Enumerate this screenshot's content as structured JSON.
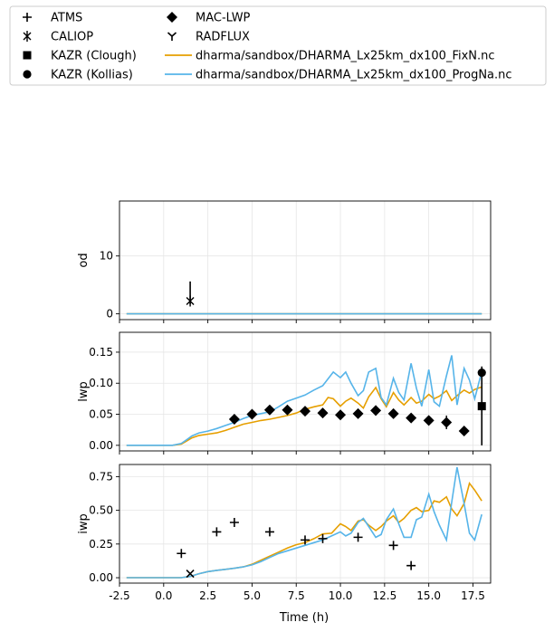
{
  "chart_data": {
    "type": "line",
    "xlabel": "Time (h)",
    "xlim": [
      -2.5,
      18.5
    ],
    "x_ticks": [
      "-2.5",
      "0.0",
      "2.5",
      "5.0",
      "7.5",
      "10.0",
      "12.5",
      "15.0",
      "17.5"
    ],
    "x_tick_values": [
      -2.5,
      0,
      2.5,
      5,
      7.5,
      10,
      12.5,
      15,
      17.5
    ],
    "grid": true,
    "legend": {
      "placement": "top, outside plot area",
      "entries": [
        {
          "label": "ATMS",
          "marker": "plus"
        },
        {
          "label": "CALIOP",
          "marker": "x-bar"
        },
        {
          "label": "KAZR (Clough)",
          "marker": "square"
        },
        {
          "label": "KAZR (Kollias)",
          "marker": "circle"
        },
        {
          "label": "MAC-LWP",
          "marker": "diamond"
        },
        {
          "label": "RADFLUX",
          "marker": "tri-down"
        },
        {
          "label": "dharma/sandbox/DHARMA_Lx25km_dx100_FixN.nc",
          "line": "#E69F00"
        },
        {
          "label": "dharma/sandbox/DHARMA_Lx25km_dx100_ProgNa.nc",
          "line": "#56B4E9"
        }
      ]
    },
    "series_colors": {
      "FixN": "#E69F00",
      "ProgNa": "#56B4E9"
    },
    "panels": [
      {
        "ylabel": "od",
        "ylim": [
          -1,
          19.5
        ],
        "y_ticks": [
          "0",
          "10"
        ],
        "y_tick_values": [
          0,
          10
        ],
        "series": [
          {
            "name": "dharma/sandbox/DHARMA_Lx25km_dx100_FixN.nc",
            "color": "#E69F00",
            "x": [
              -2.1,
              1.9,
              2.2,
              2.3,
              2.8,
              3.5,
              4.0,
              4.5,
              5.0,
              5.5,
              6.0,
              6.5,
              7.0,
              7.3,
              7.6,
              8.0,
              8.3,
              8.6,
              9.0,
              9.3,
              9.6,
              10.0,
              10.3,
              10.6,
              11.0,
              11.3,
              11.6,
              12.0,
              12.3,
              12.6,
              13.0,
              13.3,
              13.6,
              14.0,
              14.3,
              14.6,
              15.0,
              15.3,
              15.5,
              15.6,
              18.0
            ],
            "y": [
              0,
              0,
              0,
              0,
              0,
              0,
              0,
              0,
              0,
              0,
              0,
              0,
              0,
              0,
              0,
              0,
              0,
              0,
              0,
              0,
              0,
              0,
              0,
              0,
              0,
              0,
              0,
              0,
              0,
              0,
              0,
              0,
              0,
              0,
              0,
              0,
              0,
              0,
              0,
              0,
              0
            ]
          },
          {
            "name": "dharma/sandbox/DHARMA_Lx25km_dx100_ProgNa.nc",
            "color": "#56B4E9",
            "x": [
              -2.1,
              1.9,
              2.2,
              2.3,
              2.8,
              3.5,
              4.0,
              4.5,
              5.0,
              5.5,
              6.0,
              6.5,
              7.0,
              7.3,
              7.6,
              8.0,
              8.3,
              8.6,
              9.0,
              9.3,
              9.6,
              10.0,
              10.3,
              10.6,
              11.0,
              11.3,
              11.6,
              12.0,
              12.3,
              12.6,
              13.0,
              13.3,
              13.6,
              14.0,
              14.3,
              14.6,
              15.0,
              15.3,
              15.5,
              15.6,
              18.0
            ],
            "y": [
              0,
              0,
              0,
              0,
              0,
              0,
              0,
              0,
              0,
              0,
              0,
              0,
              0,
              0,
              0,
              0,
              0,
              0,
              0,
              0,
              0,
              0,
              0,
              0,
              0,
              0,
              0,
              0,
              0,
              0,
              0,
              0,
              0,
              0,
              0,
              0,
              0,
              0,
              0,
              0,
              0
            ]
          }
        ],
        "observations": [
          {
            "name": "CALIOP",
            "marker": "x-bar",
            "x": 1.5,
            "y": 2.2,
            "err_low": 0.5,
            "err_high": 3.4
          }
        ]
      },
      {
        "ylabel": "lwp",
        "ylim": [
          -0.009,
          0.182
        ],
        "y_ticks": [
          "0.00",
          "0.05",
          "0.10",
          "0.15"
        ],
        "y_tick_values": [
          0,
          0.05,
          0.1,
          0.15
        ],
        "series": [
          {
            "name": "dharma/sandbox/DHARMA_Lx25km_dx100_FixN.nc",
            "color": "#E69F00",
            "x": [
              -2.1,
              0.5,
              1.0,
              1.3,
              1.6,
              2.0,
              2.5,
              3.0,
              3.5,
              4.0,
              4.5,
              5.0,
              5.5,
              6.0,
              6.5,
              7.0,
              7.5,
              8.0,
              8.5,
              9.0,
              9.3,
              9.6,
              10.0,
              10.3,
              10.6,
              11.0,
              11.3,
              11.6,
              12.0,
              12.3,
              12.6,
              13.0,
              13.3,
              13.6,
              14.0,
              14.3,
              14.6,
              15.0,
              15.3,
              15.6,
              16.0,
              16.3,
              16.6,
              17.0,
              17.3,
              17.6,
              18.0
            ],
            "y": [
              0,
              0,
              0.002,
              0.007,
              0.012,
              0.016,
              0.018,
              0.02,
              0.024,
              0.029,
              0.034,
              0.037,
              0.04,
              0.042,
              0.045,
              0.048,
              0.052,
              0.058,
              0.062,
              0.065,
              0.077,
              0.075,
              0.063,
              0.071,
              0.076,
              0.068,
              0.06,
              0.078,
              0.093,
              0.075,
              0.062,
              0.085,
              0.073,
              0.065,
              0.077,
              0.068,
              0.071,
              0.082,
              0.075,
              0.079,
              0.088,
              0.072,
              0.08,
              0.089,
              0.084,
              0.09,
              0.094
            ]
          },
          {
            "name": "dharma/sandbox/DHARMA_Lx25km_dx100_ProgNa.nc",
            "color": "#56B4E9",
            "x": [
              -2.1,
              0.5,
              1.0,
              1.3,
              1.6,
              2.0,
              2.5,
              3.0,
              3.5,
              4.0,
              4.5,
              5.0,
              5.5,
              6.0,
              6.5,
              7.0,
              7.5,
              8.0,
              8.5,
              9.0,
              9.3,
              9.6,
              10.0,
              10.3,
              10.6,
              11.0,
              11.3,
              11.6,
              12.0,
              12.3,
              12.6,
              13.0,
              13.3,
              13.6,
              14.0,
              14.3,
              14.6,
              15.0,
              15.3,
              15.6,
              16.0,
              16.3,
              16.6,
              17.0,
              17.3,
              17.6,
              18.0
            ],
            "y": [
              0,
              0,
              0.003,
              0.009,
              0.015,
              0.02,
              0.023,
              0.027,
              0.032,
              0.037,
              0.043,
              0.048,
              0.051,
              0.054,
              0.062,
              0.071,
              0.076,
              0.081,
              0.089,
              0.096,
              0.107,
              0.118,
              0.109,
              0.118,
              0.1,
              0.08,
              0.088,
              0.118,
              0.124,
              0.077,
              0.065,
              0.108,
              0.085,
              0.073,
              0.132,
              0.092,
              0.063,
              0.122,
              0.07,
              0.063,
              0.112,
              0.145,
              0.065,
              0.124,
              0.105,
              0.075,
              0.119
            ]
          }
        ],
        "observations": [
          {
            "name": "MAC-LWP",
            "marker": "diamond",
            "x": [
              4,
              5,
              6,
              7,
              8,
              9,
              10,
              11,
              12,
              13,
              14,
              15,
              16,
              17
            ],
            "y": [
              0.042,
              0.05,
              0.057,
              0.057,
              0.055,
              0.052,
              0.049,
              0.051,
              0.056,
              0.051,
              0.044,
              0.04,
              0.037,
              0.023
            ],
            "err": [
              0.008,
              0.005,
              0.006,
              0.004,
              0.004,
              0.004,
              0.004,
              0.005,
              0.008,
              0.006,
              0.005,
              0.003,
              0.011,
              0.004
            ]
          },
          {
            "name": "KAZR (Kollias)",
            "marker": "circle",
            "x": [
              18
            ],
            "y": [
              0.117
            ],
            "err_low": [
              0.117
            ],
            "err_high": [
              0.01
            ]
          },
          {
            "name": "KAZR (Clough)",
            "marker": "square",
            "x": [
              18
            ],
            "y": [
              0.063
            ]
          }
        ]
      },
      {
        "ylabel": "iwp",
        "ylim": [
          -0.04,
          0.84
        ],
        "y_ticks": [
          "0.00",
          "0.25",
          "0.50",
          "0.75"
        ],
        "y_tick_values": [
          0,
          0.25,
          0.5,
          0.75
        ],
        "series": [
          {
            "name": "dharma/sandbox/DHARMA_Lx25km_dx100_FixN.nc",
            "color": "#E69F00",
            "x": [
              -2.1,
              1.0,
              1.5,
              2.0,
              2.5,
              3.0,
              3.5,
              4.0,
              4.5,
              5.0,
              5.5,
              6.0,
              6.5,
              7.0,
              7.5,
              8.0,
              8.5,
              9.0,
              9.5,
              10.0,
              10.3,
              10.6,
              11.0,
              11.3,
              11.6,
              12.0,
              12.3,
              12.6,
              13.0,
              13.3,
              13.6,
              14.0,
              14.3,
              14.6,
              15.0,
              15.3,
              15.6,
              16.0,
              16.3,
              16.6,
              17.0,
              17.3,
              17.6,
              18.0
            ],
            "y": [
              0,
              0,
              0.01,
              0.03,
              0.045,
              0.055,
              0.062,
              0.07,
              0.08,
              0.1,
              0.13,
              0.16,
              0.19,
              0.22,
              0.245,
              0.26,
              0.29,
              0.325,
              0.33,
              0.4,
              0.38,
              0.35,
              0.42,
              0.43,
              0.39,
              0.35,
              0.38,
              0.42,
              0.46,
              0.41,
              0.44,
              0.5,
              0.52,
              0.49,
              0.5,
              0.57,
              0.56,
              0.6,
              0.51,
              0.46,
              0.55,
              0.7,
              0.65,
              0.57
            ]
          },
          {
            "name": "dharma/sandbox/DHARMA_Lx25km_dx100_ProgNa.nc",
            "color": "#56B4E9",
            "x": [
              -2.1,
              1.0,
              1.5,
              2.0,
              2.5,
              3.0,
              3.5,
              4.0,
              4.5,
              5.0,
              5.5,
              6.0,
              6.5,
              7.0,
              7.5,
              8.0,
              8.5,
              9.0,
              9.5,
              10.0,
              10.3,
              10.6,
              11.0,
              11.3,
              11.6,
              12.0,
              12.3,
              12.6,
              13.0,
              13.3,
              13.6,
              14.0,
              14.3,
              14.6,
              15.0,
              15.3,
              15.6,
              16.0,
              16.3,
              16.6,
              17.0,
              17.3,
              17.6,
              18.0
            ],
            "y": [
              0,
              0,
              0.01,
              0.03,
              0.045,
              0.055,
              0.062,
              0.07,
              0.08,
              0.095,
              0.12,
              0.15,
              0.18,
              0.2,
              0.22,
              0.24,
              0.26,
              0.28,
              0.31,
              0.34,
              0.31,
              0.33,
              0.41,
              0.44,
              0.38,
              0.3,
              0.32,
              0.43,
              0.51,
              0.4,
              0.3,
              0.3,
              0.43,
              0.45,
              0.62,
              0.49,
              0.39,
              0.28,
              0.56,
              0.82,
              0.55,
              0.33,
              0.28,
              0.47
            ]
          }
        ],
        "observations": [
          {
            "name": "ATMS",
            "marker": "plus",
            "x": [
              1,
              3,
              4,
              6,
              8,
              9,
              11,
              13,
              14
            ],
            "y": [
              0.18,
              0.34,
              0.41,
              0.34,
              0.28,
              0.29,
              0.3,
              0.24,
              0.09
            ]
          },
          {
            "name": "CALIOP",
            "marker": "x",
            "x": [
              1.5
            ],
            "y": [
              0.03
            ]
          }
        ]
      }
    ]
  }
}
